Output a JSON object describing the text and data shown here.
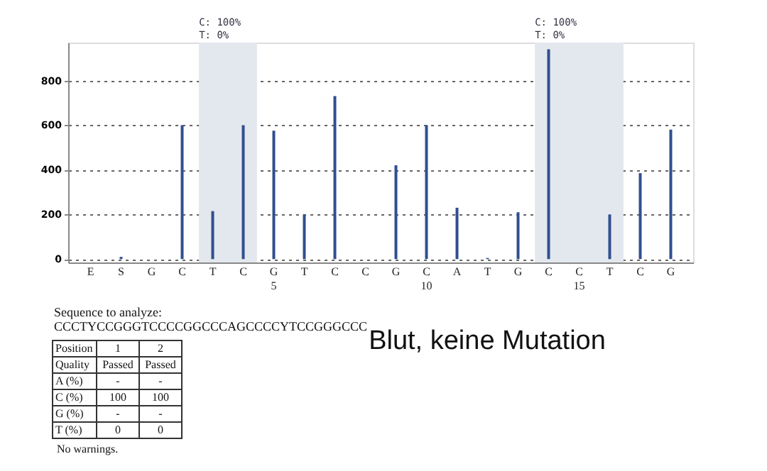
{
  "chart_data": {
    "type": "bar",
    "categories": [
      "E",
      "S",
      "G",
      "C",
      "T",
      "C",
      "G\n5",
      "T",
      "C",
      "C",
      "G",
      "C\n10",
      "A",
      "T",
      "G",
      "C",
      "C\n15",
      "T",
      "C",
      "G"
    ],
    "series": [
      {
        "color": "#2f4f8f",
        "values": [
          0,
          10,
          0,
          600,
          215,
          600,
          575,
          200,
          730,
          0,
          420,
          600,
          230,
          5,
          210,
          940,
          0,
          200,
          385,
          580
        ]
      }
    ],
    "ylim": [
      -15,
      970
    ],
    "yticks": [
      0,
      200,
      400,
      600,
      800
    ],
    "grid": "y",
    "annotations": [
      "Sequence to analyze:",
      "CCCTYCCGGGTCCCCGGCCCAGCCCCYTCCGGGCCC",
      "Position",
      "1",
      "2",
      "Quality",
      "Passed",
      "Passed",
      "A (%)",
      "-",
      "-",
      "C (%)",
      "100",
      "100",
      "G (%)",
      "-",
      "-",
      "T (%)",
      "0",
      "0",
      "No warnings.",
      "Blut, keine Mutation",
      "C: 100%\nT: 0%",
      "C: 100%\nT: 0%"
    ]
  }
}
